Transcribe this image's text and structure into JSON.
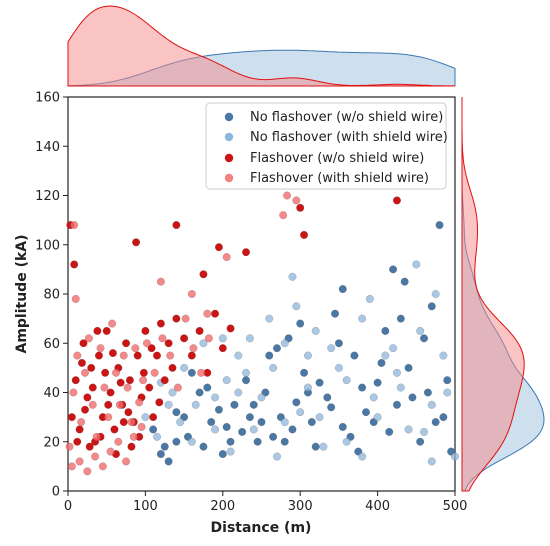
{
  "chart_data": {
    "type": "scatter",
    "xlabel": "Distance (m)",
    "ylabel": "Amplitude (kA)",
    "xlim": [
      0,
      500
    ],
    "ylim": [
      0,
      160
    ],
    "xticks": [
      "0",
      "100",
      "200",
      "300",
      "400",
      "500"
    ],
    "yticks": [
      "0",
      "20",
      "40",
      "60",
      "80",
      "100",
      "120",
      "140",
      "160"
    ],
    "legend_position": "top-right",
    "grid": false,
    "marginals": "kde (top: distance, right: amplitude)",
    "series": [
      {
        "name": "No flashover (w/o shield wire)",
        "color": "#4a77a3",
        "opacity": 1.0,
        "points": [
          [
            110,
            25
          ],
          [
            125,
            18
          ],
          [
            140,
            32
          ],
          [
            155,
            22
          ],
          [
            170,
            40
          ],
          [
            185,
            28
          ],
          [
            200,
            15
          ],
          [
            215,
            35
          ],
          [
            230,
            45
          ],
          [
            245,
            20
          ],
          [
            260,
            55
          ],
          [
            275,
            30
          ],
          [
            290,
            25
          ],
          [
            305,
            48
          ],
          [
            320,
            18
          ],
          [
            335,
            38
          ],
          [
            350,
            60
          ],
          [
            365,
            22
          ],
          [
            380,
            42
          ],
          [
            395,
            28
          ],
          [
            410,
            65
          ],
          [
            425,
            35
          ],
          [
            440,
            50
          ],
          [
            455,
            20
          ],
          [
            470,
            75
          ],
          [
            485,
            30
          ],
          [
            130,
            12
          ],
          [
            160,
            48
          ],
          [
            195,
            33
          ],
          [
            225,
            24
          ],
          [
            255,
            40
          ],
          [
            285,
            62
          ],
          [
            315,
            28
          ],
          [
            345,
            72
          ],
          [
            375,
            16
          ],
          [
            405,
            52
          ],
          [
            435,
            85
          ],
          [
            465,
            40
          ],
          [
            480,
            108
          ],
          [
            420,
            90
          ],
          [
            355,
            82
          ],
          [
            300,
            68
          ],
          [
            270,
            58
          ],
          [
            240,
            35
          ],
          [
            210,
            20
          ],
          [
            180,
            42
          ],
          [
            150,
            30
          ],
          [
            120,
            15
          ],
          [
            140,
            20
          ],
          [
            175,
            18
          ],
          [
            205,
            26
          ],
          [
            235,
            30
          ],
          [
            265,
            22
          ],
          [
            295,
            36
          ],
          [
            325,
            44
          ],
          [
            355,
            26
          ],
          [
            385,
            32
          ],
          [
            415,
            24
          ],
          [
            445,
            38
          ],
          [
            475,
            28
          ],
          [
            495,
            16
          ],
          [
            490,
            45
          ],
          [
            460,
            62
          ],
          [
            430,
            70
          ],
          [
            400,
            44
          ],
          [
            370,
            55
          ],
          [
            340,
            34
          ],
          [
            310,
            40
          ],
          [
            280,
            20
          ],
          [
            250,
            28
          ]
        ]
      },
      {
        "name": "No flashover (with shield wire)",
        "color": "#8db6db",
        "opacity": 0.75,
        "points": [
          [
            100,
            30
          ],
          [
            115,
            22
          ],
          [
            135,
            40
          ],
          [
            150,
            50
          ],
          [
            165,
            35
          ],
          [
            190,
            25
          ],
          [
            205,
            45
          ],
          [
            220,
            55
          ],
          [
            235,
            62
          ],
          [
            250,
            38
          ],
          [
            265,
            50
          ],
          [
            280,
            28
          ],
          [
            295,
            75
          ],
          [
            310,
            42
          ],
          [
            325,
            30
          ],
          [
            340,
            58
          ],
          [
            360,
            45
          ],
          [
            380,
            70
          ],
          [
            395,
            38
          ],
          [
            410,
            55
          ],
          [
            425,
            48
          ],
          [
            440,
            25
          ],
          [
            455,
            65
          ],
          [
            470,
            35
          ],
          [
            485,
            55
          ],
          [
            145,
            28
          ],
          [
            175,
            60
          ],
          [
            200,
            62
          ],
          [
            230,
            48
          ],
          [
            260,
            70
          ],
          [
            290,
            87
          ],
          [
            320,
            65
          ],
          [
            350,
            50
          ],
          [
            390,
            78
          ],
          [
            420,
            58
          ],
          [
            450,
            92
          ],
          [
            475,
            80
          ],
          [
            490,
            40
          ],
          [
            280,
            60
          ],
          [
            310,
            55
          ],
          [
            220,
            40
          ],
          [
            190,
            38
          ],
          [
            160,
            20
          ],
          [
            130,
            35
          ],
          [
            120,
            44
          ],
          [
            240,
            25
          ],
          [
            300,
            32
          ],
          [
            360,
            20
          ],
          [
            400,
            30
          ],
          [
            430,
            42
          ],
          [
            460,
            24
          ],
          [
            500,
            14
          ],
          [
            470,
            12
          ],
          [
            380,
            14
          ],
          [
            330,
            18
          ],
          [
            270,
            14
          ],
          [
            210,
            16
          ]
        ]
      },
      {
        "name": "Flashover (w/o shield wire)",
        "color": "#cc1414",
        "opacity": 1.0,
        "points": [
          [
            5,
            30
          ],
          [
            10,
            45
          ],
          [
            15,
            25
          ],
          [
            20,
            60
          ],
          [
            25,
            38
          ],
          [
            30,
            50
          ],
          [
            35,
            20
          ],
          [
            40,
            55
          ],
          [
            45,
            30
          ],
          [
            50,
            65
          ],
          [
            55,
            40
          ],
          [
            60,
            25
          ],
          [
            65,
            50
          ],
          [
            70,
            35
          ],
          [
            75,
            60
          ],
          [
            80,
            45
          ],
          [
            85,
            28
          ],
          [
            90,
            55
          ],
          [
            95,
            38
          ],
          [
            100,
            65
          ],
          [
            105,
            42
          ],
          [
            110,
            30
          ],
          [
            115,
            55
          ],
          [
            120,
            68
          ],
          [
            125,
            45
          ],
          [
            130,
            60
          ],
          [
            135,
            50
          ],
          [
            140,
            70
          ],
          [
            150,
            62
          ],
          [
            160,
            55
          ],
          [
            170,
            65
          ],
          [
            180,
            48
          ],
          [
            190,
            72
          ],
          [
            200,
            58
          ],
          [
            210,
            66
          ],
          [
            175,
            88
          ],
          [
            195,
            99
          ],
          [
            230,
            97
          ],
          [
            3,
            108
          ],
          [
            8,
            92
          ],
          [
            88,
            101
          ],
          [
            140,
            108
          ],
          [
            300,
            115
          ],
          [
            305,
            104
          ],
          [
            425,
            118
          ],
          [
            12,
            20
          ],
          [
            22,
            33
          ],
          [
            32,
            42
          ],
          [
            42,
            22
          ],
          [
            52,
            35
          ],
          [
            62,
            15
          ],
          [
            72,
            28
          ],
          [
            82,
            18
          ],
          [
            92,
            22
          ],
          [
            18,
            52
          ],
          [
            28,
            18
          ],
          [
            38,
            65
          ],
          [
            48,
            48
          ],
          [
            58,
            56
          ],
          [
            68,
            44
          ],
          [
            78,
            32
          ],
          [
            98,
            48
          ],
          [
            108,
            58
          ],
          [
            118,
            36
          ]
        ]
      },
      {
        "name": "Flashover (with shield wire)",
        "color": "#f26a6a",
        "opacity": 0.8,
        "points": [
          [
            2,
            18
          ],
          [
            7,
            40
          ],
          [
            12,
            55
          ],
          [
            17,
            28
          ],
          [
            22,
            48
          ],
          [
            27,
            62
          ],
          [
            32,
            35
          ],
          [
            37,
            22
          ],
          [
            42,
            58
          ],
          [
            47,
            42
          ],
          [
            52,
            30
          ],
          [
            57,
            68
          ],
          [
            62,
            48
          ],
          [
            67,
            35
          ],
          [
            72,
            55
          ],
          [
            77,
            42
          ],
          [
            82,
            28
          ],
          [
            87,
            58
          ],
          [
            92,
            36
          ],
          [
            97,
            45
          ],
          [
            102,
            60
          ],
          [
            112,
            48
          ],
          [
            122,
            62
          ],
          [
            132,
            55
          ],
          [
            142,
            42
          ],
          [
            152,
            70
          ],
          [
            162,
            58
          ],
          [
            172,
            48
          ],
          [
            182,
            62
          ],
          [
            8,
            108
          ],
          [
            10,
            78
          ],
          [
            120,
            85
          ],
          [
            160,
            80
          ],
          [
            180,
            72
          ],
          [
            205,
            95
          ],
          [
            278,
            112
          ],
          [
            283,
            120
          ],
          [
            295,
            118
          ],
          [
            5,
            10
          ],
          [
            15,
            12
          ],
          [
            25,
            8
          ],
          [
            35,
            14
          ],
          [
            45,
            10
          ],
          [
            55,
            16
          ],
          [
            65,
            20
          ],
          [
            75,
            12
          ],
          [
            85,
            22
          ],
          [
            95,
            26
          ]
        ]
      }
    ]
  }
}
